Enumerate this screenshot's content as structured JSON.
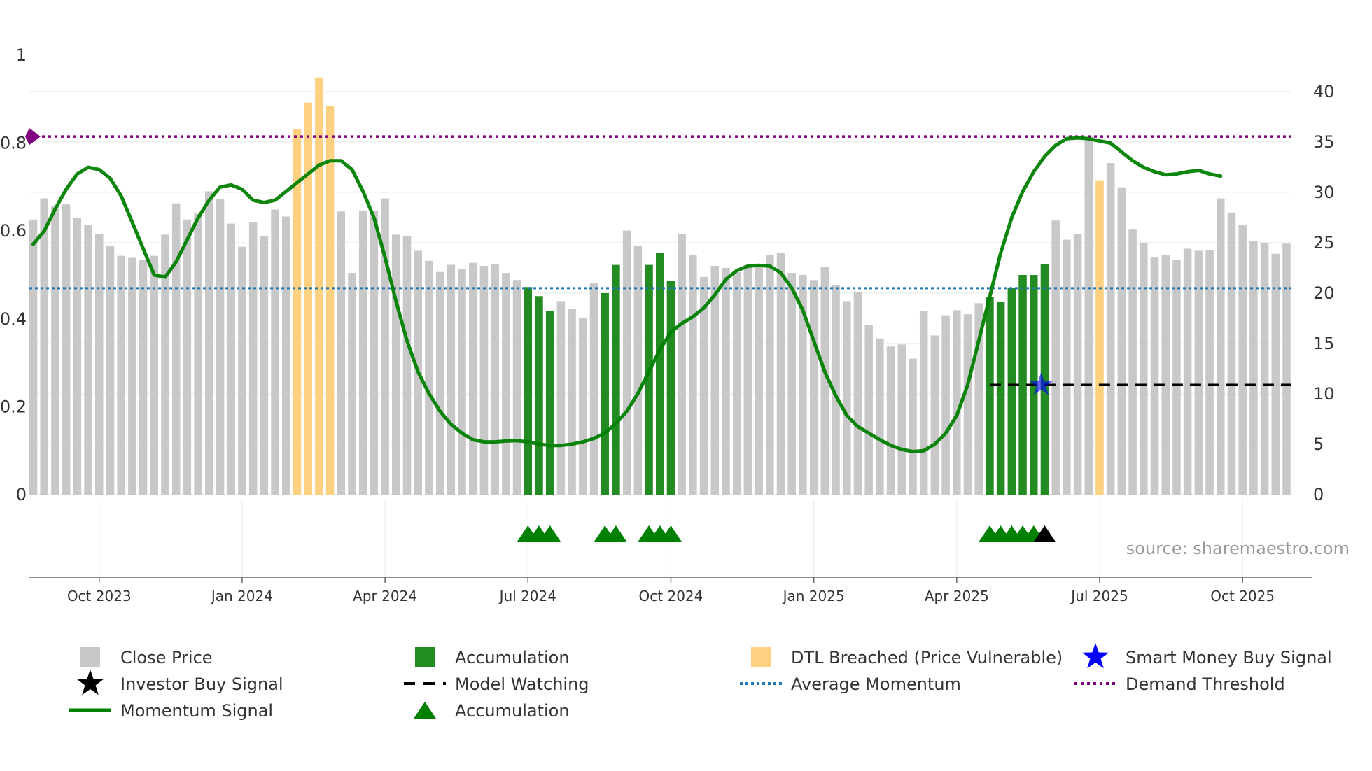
{
  "chart_data": {
    "type": "bar",
    "title": "",
    "source": "source: sharemaestro.com",
    "left_axis": {
      "ticks": [
        "0",
        "0.2",
        "0.4",
        "0.6",
        "0.8",
        "1"
      ],
      "values": [
        0,
        0.2,
        0.4,
        0.6,
        0.8,
        1.0
      ],
      "range": [
        0,
        1.0
      ]
    },
    "right_axis": {
      "ticks": [
        "0",
        "5",
        "10",
        "15",
        "20",
        "25",
        "30",
        "35",
        "40"
      ],
      "values": [
        0,
        5,
        10,
        15,
        20,
        25,
        30,
        35,
        40
      ],
      "range": [
        0,
        43.6
      ]
    },
    "x_axis": {
      "labels": [
        "Oct 2023",
        "Jan 2024",
        "Apr 2024",
        "Jul 2024",
        "Oct 2024",
        "Jan 2025",
        "Apr 2025",
        "Jul 2025",
        "Oct 2025"
      ],
      "label_bar_index": [
        6,
        19,
        32,
        45,
        58,
        71,
        84,
        97,
        110
      ]
    },
    "colors": {
      "close": "#c8c8c8",
      "accum": "#228b22",
      "dtl": "#fdd17f",
      "momentum": "#008000",
      "avg": "#1f77b4",
      "demand": "#800080",
      "buy": "#0000ff",
      "watch": "#000000"
    },
    "close_price": [
      27.3,
      29.4,
      28.6,
      28.8,
      27.5,
      26.8,
      25.9,
      24.7,
      23.7,
      23.5,
      23.3,
      23.7,
      25.8,
      28.9,
      27.3,
      27.9,
      30.1,
      29.3,
      26.9,
      24.6,
      27.0,
      25.7,
      28.3,
      27.6,
      36.3,
      38.9,
      41.4,
      38.6,
      28.1,
      22.0,
      28.2,
      28.2,
      29.4,
      25.8,
      25.7,
      24.2,
      23.2,
      22.1,
      22.8,
      22.4,
      23.0,
      22.7,
      22.9,
      22.0,
      21.3,
      20.6,
      19.7,
      18.2,
      19.2,
      18.4,
      17.5,
      21.0,
      20.0,
      22.8,
      26.2,
      24.7,
      22.8,
      24.0,
      21.2,
      25.9,
      23.8,
      21.6,
      22.7,
      22.5,
      22.1,
      22.8,
      22.8,
      23.8,
      24.0,
      22.0,
      21.8,
      21.3,
      22.6,
      20.8,
      19.2,
      20.1,
      16.8,
      15.5,
      14.7,
      14.9,
      13.5,
      18.2,
      15.8,
      17.8,
      18.3,
      17.9,
      19.0,
      19.6,
      19.1,
      20.5,
      21.8,
      21.8,
      22.9,
      27.2,
      25.3,
      25.9,
      35.5,
      31.2,
      32.9,
      30.5,
      26.3,
      25.0,
      23.6,
      23.8,
      23.3,
      24.4,
      24.2,
      24.3,
      29.4,
      28.0,
      26.8,
      25.2,
      25.0,
      23.9,
      24.9
    ],
    "accumulation_idx": [
      45,
      46,
      47,
      52,
      53,
      56,
      57,
      58,
      87,
      88,
      89,
      90,
      91,
      92
    ],
    "dtl_breached_idx": [
      24,
      25,
      26,
      27,
      97
    ],
    "momentum": [
      0.57,
      0.6,
      0.65,
      0.695,
      0.73,
      0.745,
      0.74,
      0.72,
      0.68,
      0.62,
      0.56,
      0.5,
      0.495,
      0.53,
      0.58,
      0.63,
      0.67,
      0.7,
      0.705,
      0.695,
      0.67,
      0.665,
      0.67,
      0.69,
      0.71,
      0.73,
      0.75,
      0.76,
      0.76,
      0.74,
      0.69,
      0.63,
      0.54,
      0.44,
      0.35,
      0.28,
      0.23,
      0.19,
      0.16,
      0.14,
      0.125,
      0.12,
      0.12,
      0.122,
      0.123,
      0.12,
      0.115,
      0.112,
      0.112,
      0.115,
      0.12,
      0.128,
      0.14,
      0.162,
      0.19,
      0.23,
      0.28,
      0.33,
      0.37,
      0.39,
      0.405,
      0.425,
      0.455,
      0.49,
      0.51,
      0.52,
      0.522,
      0.52,
      0.505,
      0.47,
      0.42,
      0.35,
      0.28,
      0.225,
      0.18,
      0.155,
      0.14,
      0.125,
      0.112,
      0.103,
      0.098,
      0.1,
      0.115,
      0.14,
      0.18,
      0.25,
      0.35,
      0.45,
      0.55,
      0.63,
      0.69,
      0.735,
      0.77,
      0.795,
      0.81,
      0.812,
      0.81,
      0.805,
      0.8,
      0.78,
      0.76,
      0.745,
      0.735,
      0.728,
      0.73,
      0.735,
      0.738,
      0.73,
      0.725
    ],
    "average_momentum": 0.47,
    "demand_threshold": 0.815,
    "model_watching_start_idx": 87,
    "model_watching_value": 0.25,
    "investor_buy_signal_idx": 92,
    "smart_money_buy_idx": 92,
    "smart_money_buy_value": 0.25,
    "accumulation_markers_idx": [
      45,
      46,
      47,
      52,
      53,
      56,
      57,
      58,
      87,
      88,
      89,
      90,
      91
    ],
    "investor_buy_marker_idx": 92
  },
  "legend": [
    {
      "label": "Close Price",
      "key": "close"
    },
    {
      "label": "Accumulation",
      "key": "accum"
    },
    {
      "label": "DTL Breached (Price Vulnerable)",
      "key": "dtl"
    },
    {
      "label": "Smart Money Buy Signal",
      "key": "smart"
    },
    {
      "label": "Investor Buy Signal",
      "key": "investor"
    },
    {
      "label": "Model Watching",
      "key": "watching"
    },
    {
      "label": "Average Momentum",
      "key": "avg"
    },
    {
      "label": "Demand Threshold",
      "key": "demand"
    },
    {
      "label": "Momentum Signal",
      "key": "momentum"
    },
    {
      "label": "Accumulation",
      "key": "accum_marker"
    }
  ]
}
